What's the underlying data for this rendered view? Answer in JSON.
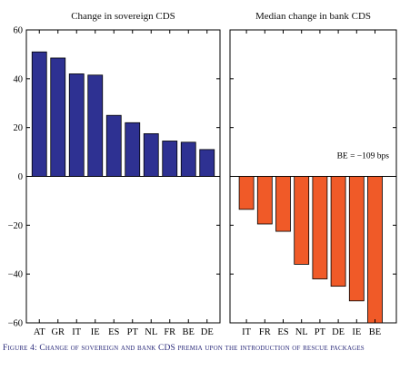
{
  "chart_data": [
    {
      "type": "bar",
      "title": "Change in sovereign CDS",
      "categories": [
        "AT",
        "GR",
        "IT",
        "IE",
        "ES",
        "PT",
        "NL",
        "FR",
        "BE",
        "DE"
      ],
      "values": [
        51,
        48.5,
        42,
        41.5,
        25,
        22,
        17.5,
        14.5,
        14,
        11
      ],
      "ylim": [
        -60,
        60
      ],
      "yticks": [
        -60,
        -40,
        -20,
        0,
        20,
        40,
        60
      ],
      "ytick_labels": [
        "−60",
        "−40",
        "−20",
        "0",
        "20",
        "40",
        "60"
      ],
      "color": "#2e3192",
      "grid": false
    },
    {
      "type": "bar",
      "title": "Median change in bank CDS",
      "categories": [
        "IT",
        "FR",
        "ES",
        "NL",
        "PT",
        "DE",
        "IE",
        "BE"
      ],
      "values": [
        -13.5,
        -19.5,
        -22.5,
        -36,
        -42,
        -45,
        -51,
        -60
      ],
      "ylim": [
        -60,
        60
      ],
      "annotation": "BE = −109 bps",
      "color": "#f05a28",
      "grid": false
    }
  ],
  "caption": {
    "label": "Figure 4:",
    "text": "Change of sovereign and bank CDS premia upon the introduction of rescue packages"
  }
}
